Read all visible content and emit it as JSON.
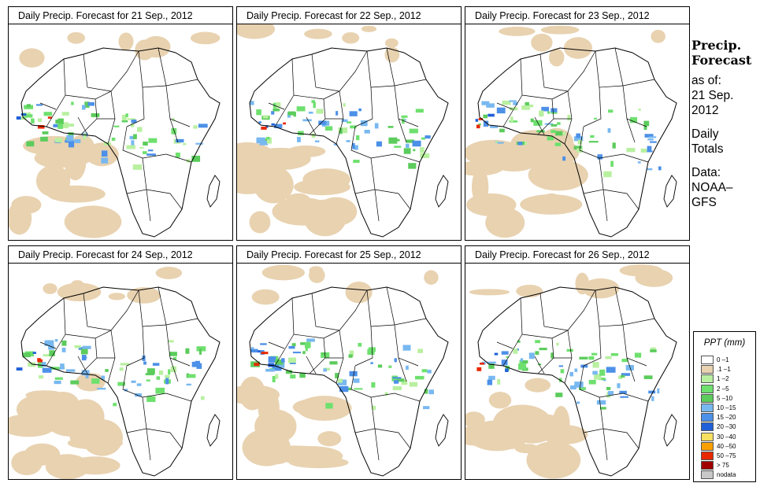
{
  "panels": [
    {
      "title": "Daily Precip. Forecast for  21 Sep., 2012"
    },
    {
      "title": "Daily Precip. Forecast for  22 Sep., 2012"
    },
    {
      "title": "Daily Precip. Forecast for  23 Sep., 2012"
    },
    {
      "title": "Daily Precip. Forecast for  24 Sep., 2012"
    },
    {
      "title": "Daily Precip. Forecast for  25 Sep., 2012"
    },
    {
      "title": "Daily Precip. Forecast for  26 Sep., 2012"
    }
  ],
  "side": {
    "heading_line1": "Precip.",
    "heading_line2": "Forecast",
    "asof_line1": "as of:",
    "asof_line2": "21 Sep.",
    "asof_line3": "2012",
    "daily_line1": "Daily",
    "daily_line2": "Totals",
    "data_line1": "Data:",
    "data_line2": "NOAA–",
    "data_line3": "GFS"
  },
  "legend": {
    "title": "PPT (mm)",
    "items": [
      {
        "label": "0 –1",
        "color": "#ffffff"
      },
      {
        "label": ".1 –1",
        "color": "#e8d2b0"
      },
      {
        "label": "1 –2",
        "color": "#b8f0a0"
      },
      {
        "label": "2 –5",
        "color": "#6ee06e"
      },
      {
        "label": "5 –10",
        "color": "#5ccc5c"
      },
      {
        "label": "10 –15",
        "color": "#78b8f0"
      },
      {
        "label": "15 –20",
        "color": "#4c90e8"
      },
      {
        "label": "20 –30",
        "color": "#2060d8"
      },
      {
        "label": "30 –40",
        "color": "#f8e060"
      },
      {
        "label": "40 –50",
        "color": "#f8a000"
      },
      {
        "label": "50 –75",
        "color": "#e82800"
      },
      {
        "label": "> 75",
        "color": "#a00000"
      },
      {
        "label": "nodata",
        "color": "#c8c8c8"
      }
    ]
  }
}
